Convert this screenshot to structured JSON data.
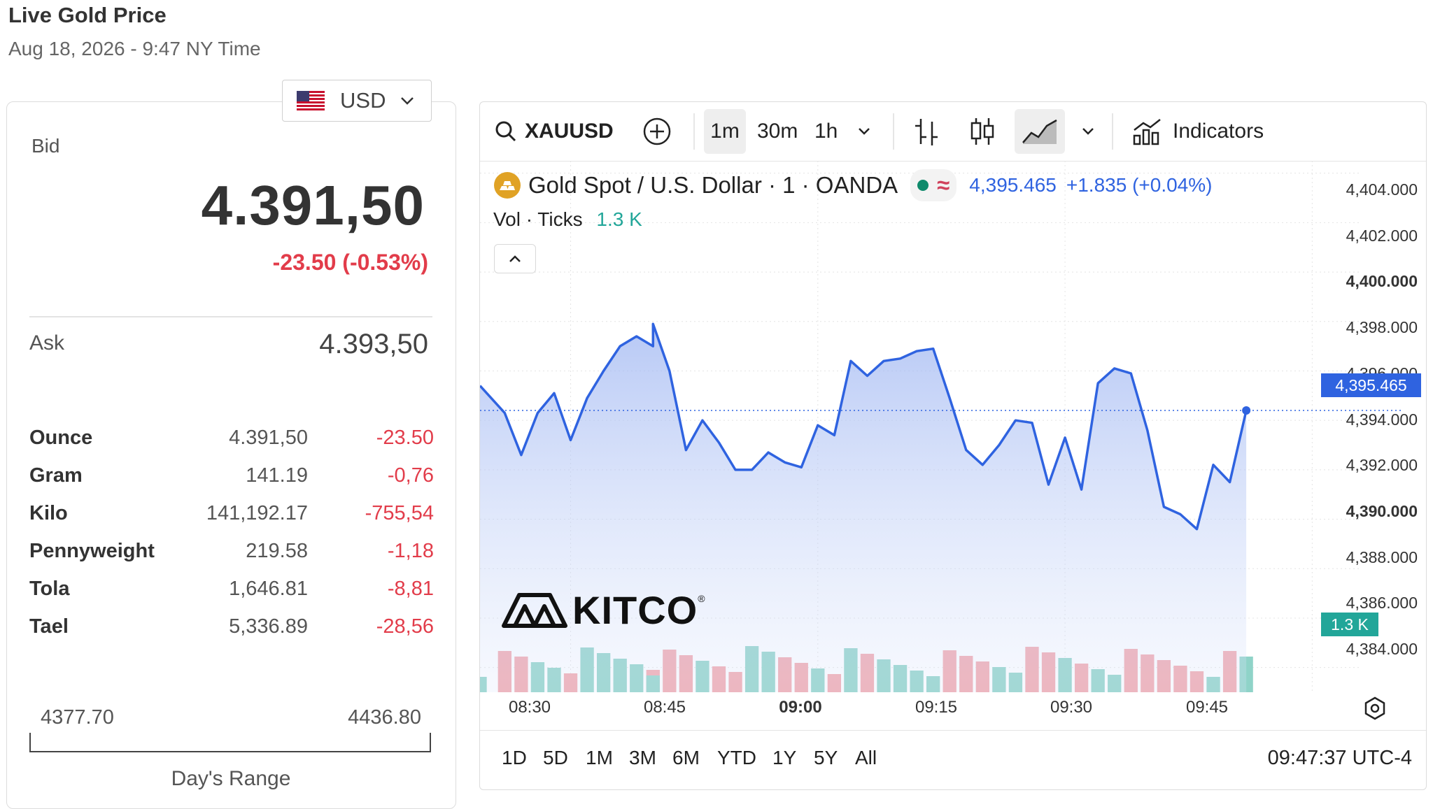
{
  "page": {
    "title": "Live Gold Price",
    "subtitle": "Aug 18, 2026 - 9:47 NY Time"
  },
  "currency": {
    "code": "USD",
    "flag_icon": "us-flag-icon"
  },
  "quote": {
    "bid_label": "Bid",
    "bid_value": "4.391,50",
    "bid_change": "-23.50 (-0.53%)",
    "ask_label": "Ask",
    "ask_value": "4.393,50"
  },
  "units": [
    {
      "unit": "Ounce",
      "price": "4.391,50",
      "change": "-23.50"
    },
    {
      "unit": "Gram",
      "price": "141.19",
      "change": "-0,76"
    },
    {
      "unit": "Kilo",
      "price": "141,192.17",
      "change": "-755,54"
    },
    {
      "unit": "Pennyweight",
      "price": "219.58",
      "change": "-1,18"
    },
    {
      "unit": "Tola",
      "price": "1,646.81",
      "change": "-8,81"
    },
    {
      "unit": "Tael",
      "price": "5,336.89",
      "change": "-28,56"
    }
  ],
  "day_range": {
    "low": "4377.70",
    "high": "4436.80",
    "label": "Day's Range"
  },
  "toolbar": {
    "symbol": "XAUUSD",
    "intervals": [
      "1m",
      "30m",
      "1h"
    ],
    "active_interval": "1m",
    "indicators_label": "Indicators"
  },
  "legend": {
    "title": "Gold Spot / U.S. Dollar · 1 · OANDA",
    "last": "4,395.465",
    "change": "+1.835 (+0.04%)",
    "vol_label": "Vol · Ticks",
    "vol_value": "1.3 K"
  },
  "watermark": "KITCO",
  "price_tag": "4,395.465",
  "vol_tag": "1.3 K",
  "bottom": {
    "ranges": [
      "1D",
      "5D",
      "1M",
      "3M",
      "6M",
      "YTD",
      "1Y",
      "5Y",
      "All"
    ],
    "clock": "09:47:37 UTC-4"
  },
  "colors": {
    "line": "#2f63e0",
    "up_volume": "#8fd3c8",
    "down_volume": "#f2a7ad",
    "negative": "#e23c4a",
    "tag_blue": "#2f63e0",
    "tag_teal": "#22a699"
  },
  "chart_data": {
    "type": "area",
    "x_tick_labels": [
      "08:30",
      "08:45",
      "09:00",
      "09:15",
      "09:30",
      "09:45"
    ],
    "y_tick_labels": [
      "4,404.000",
      "4,402.000",
      "4,400.000",
      "4,398.000",
      "4,396.000",
      "4,394.000",
      "4,392.000",
      "4,390.000",
      "4,388.000",
      "4,386.000",
      "4,384.000"
    ],
    "ylim": [
      4383.0,
      4404.5
    ],
    "x_range_minutes": [
      -5.5,
      48
    ],
    "price": [
      [
        -5.5,
        4395.4
      ],
      [
        -4.0,
        4394.3
      ],
      [
        -3.0,
        4392.6
      ],
      [
        -2.0,
        4394.3
      ],
      [
        -1.0,
        4395.1
      ],
      [
        0.0,
        4393.2
      ],
      [
        1.0,
        4394.9
      ],
      [
        2.0,
        4396.0
      ],
      [
        3.0,
        4397.0
      ],
      [
        4.0,
        4397.4
      ],
      [
        5.0,
        4397.0
      ],
      [
        5.0,
        4397.9
      ],
      [
        6.0,
        4396.0
      ],
      [
        7.0,
        4392.8
      ],
      [
        8.0,
        4394.0
      ],
      [
        9.0,
        4393.1
      ],
      [
        10.0,
        4392.0
      ],
      [
        11.0,
        4392.0
      ],
      [
        12.0,
        4392.7
      ],
      [
        13.0,
        4392.3
      ],
      [
        14.0,
        4392.1
      ],
      [
        15.0,
        4393.8
      ],
      [
        16.0,
        4393.4
      ],
      [
        17.0,
        4396.4
      ],
      [
        18.0,
        4395.8
      ],
      [
        19.0,
        4396.4
      ],
      [
        20.0,
        4396.5
      ],
      [
        21.0,
        4396.8
      ],
      [
        22.0,
        4396.9
      ],
      [
        23.0,
        4394.9
      ],
      [
        24.0,
        4392.8
      ],
      [
        25.0,
        4392.2
      ],
      [
        26.0,
        4393.0
      ],
      [
        27.0,
        4394.0
      ],
      [
        28.0,
        4393.9
      ],
      [
        29.0,
        4391.4
      ],
      [
        30.0,
        4393.3
      ],
      [
        31.0,
        4391.2
      ],
      [
        32.0,
        4395.5
      ],
      [
        33.0,
        4396.1
      ],
      [
        34.0,
        4395.9
      ],
      [
        35.0,
        4393.6
      ],
      [
        36.0,
        4390.5
      ],
      [
        37.0,
        4390.2
      ],
      [
        38.0,
        4389.6
      ],
      [
        39.0,
        4392.2
      ],
      [
        40.0,
        4391.5
      ],
      [
        41.0,
        4394.4
      ]
    ],
    "volume": []
  }
}
